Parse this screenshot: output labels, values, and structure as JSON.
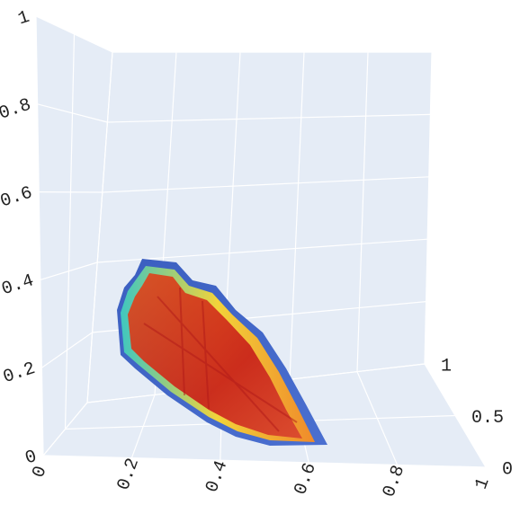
{
  "chart_data": {
    "type": "surface",
    "xlim": [
      0,
      1
    ],
    "xticks": [
      0,
      0.2,
      0.4,
      0.6,
      0.8,
      1
    ],
    "ylim": [
      0,
      1
    ],
    "yticks": [
      0,
      0.5,
      1
    ],
    "zlim": [
      0,
      1
    ],
    "zticks": [
      0,
      0.2,
      0.4,
      0.6,
      0.8,
      1
    ],
    "grid": true
  }
}
